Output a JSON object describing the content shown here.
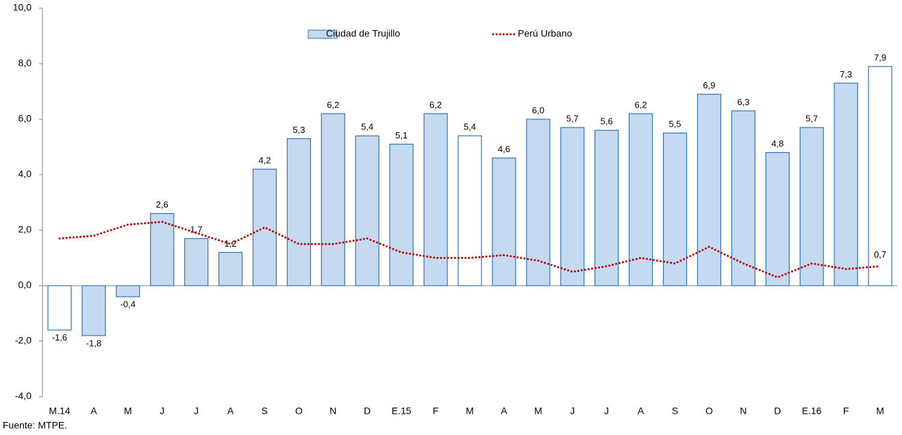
{
  "chart_data": {
    "type": "bar",
    "source": "Fuente: MTPE.",
    "categories": [
      "M.14",
      "A",
      "M",
      "J",
      "J",
      "A",
      "S",
      "O",
      "N",
      "D",
      "E.15",
      "F",
      "M",
      "A",
      "M",
      "J",
      "J",
      "A",
      "S",
      "O",
      "N",
      "D",
      "E.16",
      "F",
      "M"
    ],
    "series": [
      {
        "name": "Ciudad de Trujillo",
        "type": "bar",
        "color": "#c5d9f1",
        "edge_color": "#2e75b6",
        "colors": [
          "#ffffff",
          "#c5d9f1",
          "#c5d9f1",
          "#c5d9f1",
          "#c5d9f1",
          "#c5d9f1",
          "#c5d9f1",
          "#c5d9f1",
          "#c5d9f1",
          "#c5d9f1",
          "#c5d9f1",
          "#c5d9f1",
          "#ffffff",
          "#c5d9f1",
          "#c5d9f1",
          "#c5d9f1",
          "#c5d9f1",
          "#c5d9f1",
          "#c5d9f1",
          "#c5d9f1",
          "#c5d9f1",
          "#c5d9f1",
          "#c5d9f1",
          "#c5d9f1",
          "#ffffff"
        ],
        "values": [
          -1.6,
          -1.8,
          -0.4,
          2.6,
          1.7,
          1.2,
          4.2,
          5.3,
          6.2,
          5.4,
          5.1,
          6.2,
          5.4,
          4.6,
          6.0,
          5.7,
          5.6,
          6.2,
          5.5,
          6.9,
          6.3,
          4.8,
          5.7,
          7.3,
          7.9
        ],
        "value_labels": [
          "-1,6",
          "-1,8",
          "-0,4",
          "2,6",
          "1,7",
          "1,2",
          "4,2",
          "5,3",
          "6,2",
          "5,4",
          "5,1",
          "6,2",
          "5,4",
          "4,6",
          "6,0",
          "5,7",
          "5,6",
          "6,2",
          "5,5",
          "6,9",
          "6,3",
          "4,8",
          "5,7",
          "7,3",
          "7,9"
        ]
      },
      {
        "name": "Perú Urbano",
        "type": "line",
        "color": "#c00000",
        "values": [
          1.7,
          1.8,
          2.2,
          2.3,
          1.9,
          1.5,
          2.1,
          1.5,
          1.5,
          1.7,
          1.2,
          1.0,
          1.0,
          1.1,
          0.9,
          0.5,
          0.7,
          1.0,
          0.8,
          1.4,
          0.8,
          0.3,
          0.8,
          0.6,
          0.7
        ],
        "value_labels": [
          null,
          null,
          null,
          null,
          null,
          null,
          null,
          null,
          null,
          null,
          null,
          null,
          null,
          null,
          null,
          null,
          null,
          null,
          null,
          null,
          null,
          null,
          null,
          null,
          "0,7"
        ]
      }
    ],
    "ylim": [
      -4,
      10
    ],
    "yticks": [
      {
        "value": -4,
        "label": "-4,0"
      },
      {
        "value": -2,
        "label": "-2,0"
      },
      {
        "value": 0,
        "label": "0,0"
      },
      {
        "value": 2,
        "label": "2,0"
      },
      {
        "value": 4,
        "label": "4,0"
      },
      {
        "value": 6,
        "label": "6,0"
      },
      {
        "value": 8,
        "label": "8,0"
      },
      {
        "value": 10,
        "label": "10,0"
      }
    ],
    "legend": "top"
  }
}
